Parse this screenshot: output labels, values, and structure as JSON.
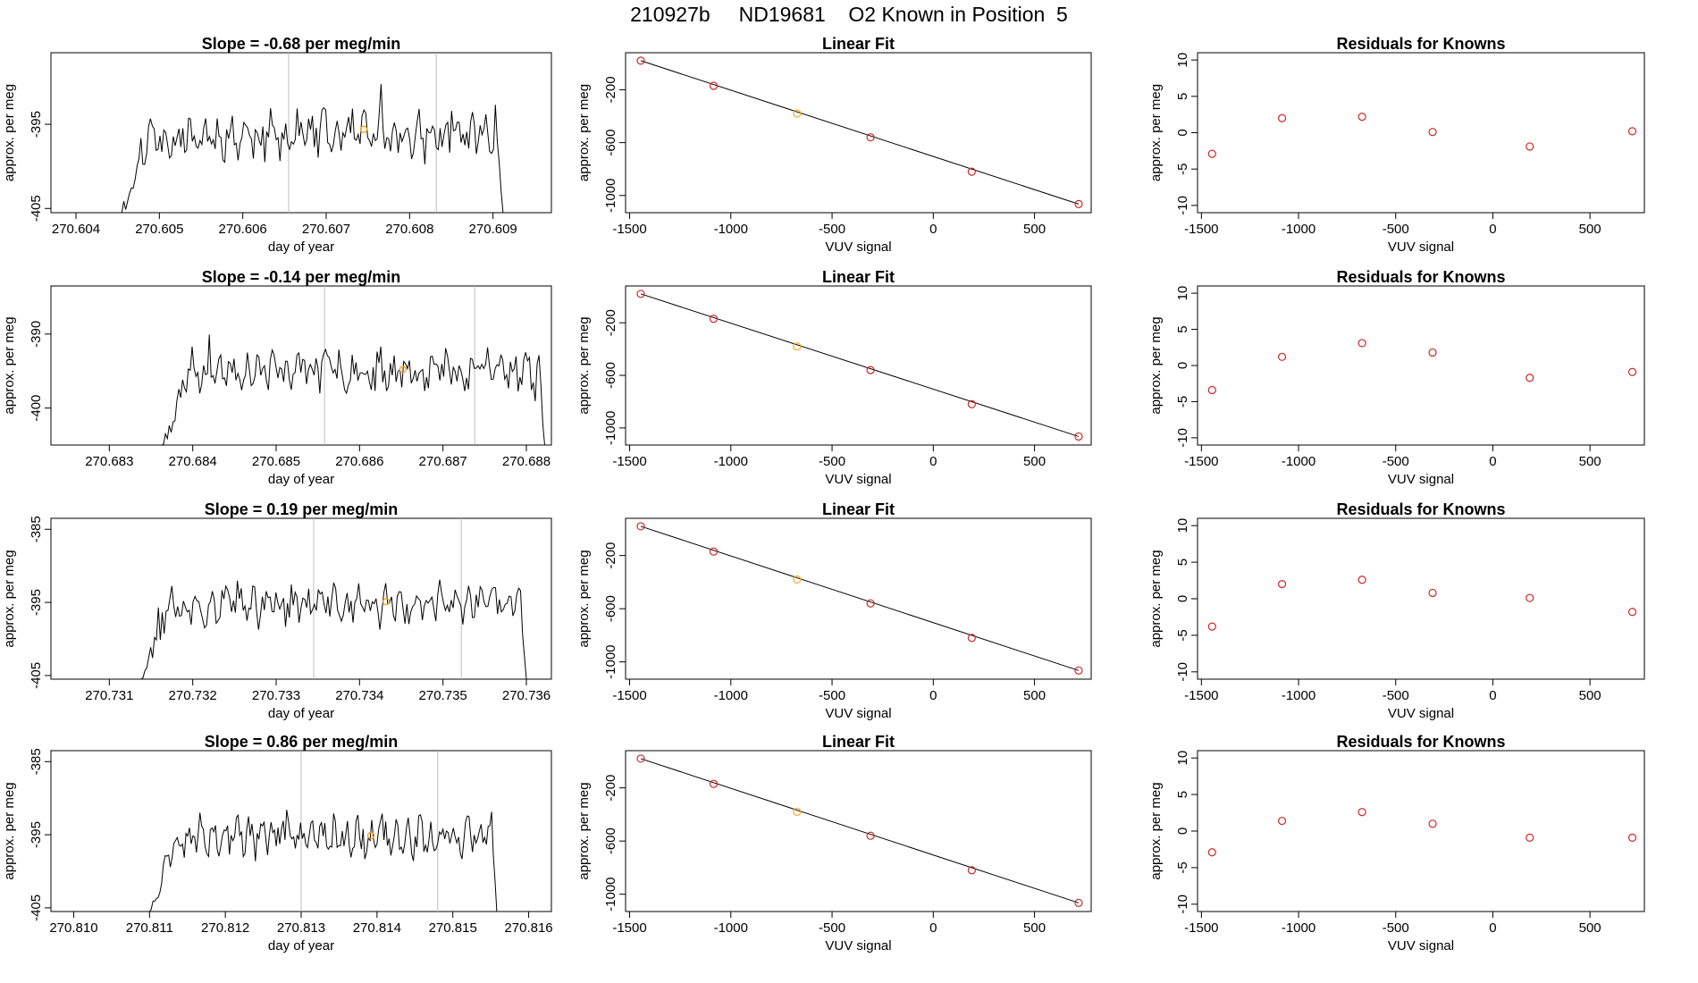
{
  "page_title": "210927b     ND19681    O2 Known in Position  5",
  "colors": {
    "trace": "#000000",
    "vline": "#bdbdbd",
    "point": "#cd2626",
    "highlight": "#f5a623",
    "axis": "#000000"
  },
  "chart_data": [
    {
      "type": "line",
      "row": 0,
      "col": 0,
      "title": "Slope =  -0.68  per meg/min",
      "xlabel": "day of year",
      "ylabel": "approx. per meg",
      "xlim": [
        270.6037,
        270.6097
      ],
      "ylim": [
        -405.5,
        -386.5
      ],
      "xticks": [
        270.604,
        270.605,
        270.606,
        270.607,
        270.608,
        270.609
      ],
      "xtick_labels": [
        "270.604",
        "270.605",
        "270.606",
        "270.607",
        "270.608",
        "270.609"
      ],
      "yticks": [
        -395,
        -405
      ],
      "ytick_labels": [
        "-395",
        "-405"
      ],
      "vlines": [
        270.60655,
        270.60832
      ],
      "x_start": 270.60455,
      "x_end": 270.60912,
      "trace_mean": -396.4,
      "trace_seed": 11,
      "highlight": {
        "x": 270.60745,
        "y": -395.6
      }
    },
    {
      "type": "scatter",
      "row": 0,
      "col": 1,
      "title": "Linear Fit",
      "xlabel": "VUV signal",
      "ylabel": "approx. per meg",
      "xlim": [
        -1520,
        780
      ],
      "ylim": [
        -1130,
        80
      ],
      "xticks": [
        -1500,
        -1000,
        -500,
        0,
        500
      ],
      "xtick_labels": [
        "-1500",
        "-1000",
        "-500",
        "0",
        "500"
      ],
      "yticks": [
        -200,
        -600,
        -1000
      ],
      "ytick_labels": [
        "-200",
        "-600",
        "-1000"
      ],
      "line": [
        [
          -1445,
          20
        ],
        [
          718,
          -1065
        ]
      ],
      "x": [
        -1445,
        -1085,
        -673,
        -310,
        190,
        718
      ],
      "y": [
        20,
        -170,
        -380,
        -560,
        -820,
        -1065
      ],
      "highlight_index": 2
    },
    {
      "type": "scatter",
      "row": 0,
      "col": 2,
      "title": "Residuals for Knowns",
      "xlabel": "VUV signal",
      "ylabel": "approx. per meg",
      "xlim": [
        -1520,
        780
      ],
      "ylim": [
        -11,
        11
      ],
      "xticks": [
        -1500,
        -1000,
        -500,
        0,
        500
      ],
      "xtick_labels": [
        "-1500",
        "-1000",
        "-500",
        "0",
        "500"
      ],
      "yticks": [
        10,
        5,
        0,
        -5,
        -10
      ],
      "ytick_labels": [
        "10",
        "5",
        "0",
        "-5",
        "-10"
      ],
      "x": [
        -1445,
        -1085,
        -673,
        -310,
        190,
        718
      ],
      "y": [
        -2.9,
        2.0,
        2.2,
        0.1,
        -1.9,
        0.2
      ]
    },
    {
      "type": "line",
      "row": 1,
      "col": 0,
      "title": "Slope =  -0.14  per meg/min",
      "xlabel": "day of year",
      "ylabel": "approx. per meg",
      "xlim": [
        270.6823,
        270.6883
      ],
      "ylim": [
        -405,
        -383.5
      ],
      "xticks": [
        270.683,
        270.684,
        270.685,
        270.686,
        270.687,
        270.688
      ],
      "xtick_labels": [
        "270.683",
        "270.684",
        "270.685",
        "270.686",
        "270.687",
        "270.688"
      ],
      "yticks": [
        -390,
        -400
      ],
      "ytick_labels": [
        "-390",
        "-400"
      ],
      "vlines": [
        270.68558,
        270.68738
      ],
      "x_start": 270.68365,
      "x_end": 270.68822,
      "trace_mean": -394.8,
      "trace_seed": 23,
      "highlight": {
        "x": 270.68652,
        "y": -394.8
      }
    },
    {
      "type": "scatter",
      "row": 1,
      "col": 1,
      "title": "Linear Fit",
      "xlabel": "VUV signal",
      "ylabel": "approx. per meg",
      "xlim": [
        -1520,
        780
      ],
      "ylim": [
        -1130,
        80
      ],
      "xticks": [
        -1500,
        -1000,
        -500,
        0,
        500
      ],
      "xtick_labels": [
        "-1500",
        "-1000",
        "-500",
        "0",
        "500"
      ],
      "yticks": [
        -200,
        -600,
        -1000
      ],
      "ytick_labels": [
        "-200",
        "-600",
        "-1000"
      ],
      "line": [
        [
          -1445,
          20
        ],
        [
          718,
          -1065
        ]
      ],
      "x": [
        -1445,
        -1085,
        -673,
        -310,
        190,
        718
      ],
      "y": [
        20,
        -170,
        -380,
        -560,
        -820,
        -1065
      ],
      "highlight_index": 2
    },
    {
      "type": "scatter",
      "row": 1,
      "col": 2,
      "title": "Residuals for Knowns",
      "xlabel": "VUV signal",
      "ylabel": "approx. per meg",
      "xlim": [
        -1520,
        780
      ],
      "ylim": [
        -11,
        11
      ],
      "xticks": [
        -1500,
        -1000,
        -500,
        0,
        500
      ],
      "xtick_labels": [
        "-1500",
        "-1000",
        "-500",
        "0",
        "500"
      ],
      "yticks": [
        10,
        5,
        0,
        -5,
        -10
      ],
      "ytick_labels": [
        "10",
        "5",
        "0",
        "-5",
        "-10"
      ],
      "x": [
        -1445,
        -1085,
        -673,
        -310,
        190,
        718
      ],
      "y": [
        -3.4,
        1.2,
        3.1,
        1.8,
        -1.7,
        -0.9
      ]
    },
    {
      "type": "line",
      "row": 2,
      "col": 0,
      "title": "Slope =  0.19  per meg/min",
      "xlabel": "day of year",
      "ylabel": "approx. per meg",
      "xlim": [
        270.7303,
        270.7363
      ],
      "ylim": [
        -405.5,
        -383.5
      ],
      "xticks": [
        270.731,
        270.732,
        270.733,
        270.734,
        270.735,
        270.736
      ],
      "xtick_labels": [
        "270.731",
        "270.732",
        "270.733",
        "270.734",
        "270.735",
        "270.736"
      ],
      "yticks": [
        -385,
        -395,
        -405
      ],
      "ytick_labels": [
        "-385",
        "-395",
        "-405"
      ],
      "vlines": [
        270.73345,
        270.73522
      ],
      "x_start": 270.73138,
      "x_end": 270.736,
      "trace_mean": -395.3,
      "trace_seed": 37,
      "highlight": {
        "x": 270.73432,
        "y": -394.9
      }
    },
    {
      "type": "scatter",
      "row": 2,
      "col": 1,
      "title": "Linear Fit",
      "xlabel": "VUV signal",
      "ylabel": "approx. per meg",
      "xlim": [
        -1520,
        780
      ],
      "ylim": [
        -1130,
        80
      ],
      "xticks": [
        -1500,
        -1000,
        -500,
        0,
        500
      ],
      "xtick_labels": [
        "-1500",
        "-1000",
        "-500",
        "0",
        "500"
      ],
      "yticks": [
        -200,
        -600,
        -1000
      ],
      "ytick_labels": [
        "-200",
        "-600",
        "-1000"
      ],
      "line": [
        [
          -1445,
          20
        ],
        [
          718,
          -1065
        ]
      ],
      "x": [
        -1445,
        -1085,
        -673,
        -310,
        190,
        718
      ],
      "y": [
        20,
        -170,
        -380,
        -560,
        -820,
        -1065
      ],
      "highlight_index": 2
    },
    {
      "type": "scatter",
      "row": 2,
      "col": 2,
      "title": "Residuals for Knowns",
      "xlabel": "VUV signal",
      "ylabel": "approx. per meg",
      "xlim": [
        -1520,
        780
      ],
      "ylim": [
        -11,
        11
      ],
      "xticks": [
        -1500,
        -1000,
        -500,
        0,
        500
      ],
      "xtick_labels": [
        "-1500",
        "-1000",
        "-500",
        "0",
        "500"
      ],
      "yticks": [
        10,
        5,
        0,
        -5,
        -10
      ],
      "ytick_labels": [
        "10",
        "5",
        "0",
        "-5",
        "-10"
      ],
      "x": [
        -1445,
        -1085,
        -673,
        -310,
        190,
        718
      ],
      "y": [
        -3.8,
        2.0,
        2.6,
        0.8,
        0.1,
        -1.8
      ]
    },
    {
      "type": "line",
      "row": 3,
      "col": 0,
      "title": "Slope =  0.86  per meg/min",
      "xlabel": "day of year",
      "ylabel": "approx. per meg",
      "xlim": [
        270.8097,
        270.8163
      ],
      "ylim": [
        -405.5,
        -383.5
      ],
      "xticks": [
        270.81,
        270.811,
        270.812,
        270.813,
        270.814,
        270.815,
        270.816
      ],
      "xtick_labels": [
        "270.810",
        "270.811",
        "270.812",
        "270.813",
        "270.814",
        "270.815",
        "270.816"
      ],
      "yticks": [
        -385,
        -395,
        -405
      ],
      "ytick_labels": [
        "-385",
        "-395",
        "-405"
      ],
      "vlines": [
        270.813,
        270.8148
      ],
      "x_start": 270.811,
      "x_end": 270.81558,
      "trace_mean": -395.2,
      "trace_seed": 53,
      "highlight": {
        "x": 270.81392,
        "y": -395.1
      }
    },
    {
      "type": "scatter",
      "row": 3,
      "col": 1,
      "title": "Linear Fit",
      "xlabel": "VUV signal",
      "ylabel": "approx. per meg",
      "xlim": [
        -1520,
        780
      ],
      "ylim": [
        -1130,
        80
      ],
      "xticks": [
        -1500,
        -1000,
        -500,
        0,
        500
      ],
      "xtick_labels": [
        "-1500",
        "-1000",
        "-500",
        "0",
        "500"
      ],
      "yticks": [
        -200,
        -600,
        -1000
      ],
      "ytick_labels": [
        "-200",
        "-600",
        "-1000"
      ],
      "line": [
        [
          -1445,
          20
        ],
        [
          718,
          -1065
        ]
      ],
      "x": [
        -1445,
        -1085,
        -673,
        -310,
        190,
        718
      ],
      "y": [
        20,
        -170,
        -380,
        -560,
        -820,
        -1065
      ],
      "highlight_index": 2
    },
    {
      "type": "scatter",
      "row": 3,
      "col": 2,
      "title": "Residuals for Knowns",
      "xlabel": "VUV signal",
      "ylabel": "approx. per meg",
      "xlim": [
        -1520,
        780
      ],
      "ylim": [
        -11,
        11
      ],
      "xticks": [
        -1500,
        -1000,
        -500,
        0,
        500
      ],
      "xtick_labels": [
        "-1500",
        "-1000",
        "-500",
        "0",
        "500"
      ],
      "yticks": [
        10,
        5,
        0,
        -5,
        -10
      ],
      "ytick_labels": [
        "10",
        "5",
        "0",
        "-5",
        "-10"
      ],
      "x": [
        -1445,
        -1085,
        -673,
        -310,
        190,
        718
      ],
      "y": [
        -2.9,
        1.4,
        2.6,
        1.0,
        -0.9,
        -0.9
      ]
    }
  ]
}
